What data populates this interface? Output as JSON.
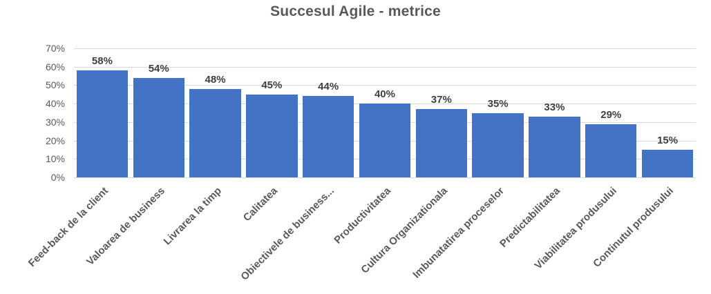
{
  "chart_data": {
    "type": "bar",
    "title": "Succesul Agile - metrice",
    "categories": [
      "Feed-back de la client",
      "Valoarea de business",
      "Livrarea la timp",
      "Calitatea",
      "Obiectivele de business...",
      "Productivitatea",
      "Cultura Organizationala",
      "Imbunatatirea proceselor",
      "Predictabilitatea",
      "Viabilitatea produsului",
      "Continutul produsului"
    ],
    "values": [
      58,
      54,
      48,
      45,
      44,
      40,
      37,
      35,
      33,
      29,
      15
    ],
    "value_labels": [
      "58%",
      "54%",
      "48%",
      "45%",
      "44%",
      "40%",
      "37%",
      "35%",
      "33%",
      "29%",
      "15%"
    ],
    "xlabel": "",
    "ylabel": "",
    "ylim": [
      0,
      70
    ],
    "ytick_step": 10,
    "ytick_labels": [
      "0%",
      "10%",
      "20%",
      "30%",
      "40%",
      "50%",
      "60%",
      "70%"
    ],
    "grid": true,
    "legend": "none",
    "bar_color": "#4472C4",
    "gridline_color": "#d9d9d9",
    "title_color": "#595959",
    "tick_color": "#595959",
    "value_label_color": "#3f3f3f"
  }
}
